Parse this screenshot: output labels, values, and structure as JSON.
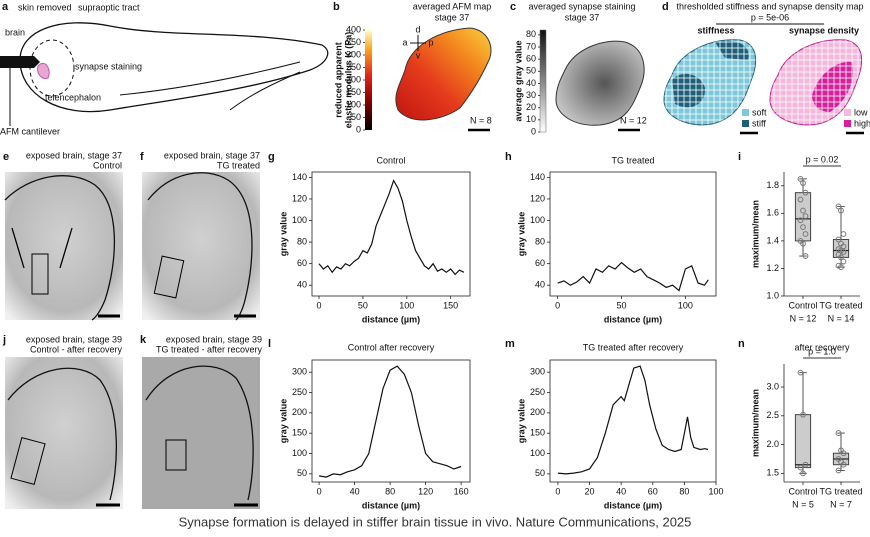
{
  "caption": "Synapse formation is delayed in stiffer brain tissue in vivo. Nature Communications, 2025",
  "panels": {
    "a": {
      "letter": "a",
      "brain": "brain",
      "skin_removed": "skin removed",
      "supraoptic_tract": "supraoptic tract",
      "synapse_staining": "synapse staining",
      "telencephalon": "telencephalon",
      "afm_cantilever": "AFM cantilever"
    },
    "b": {
      "letter": "b",
      "title": "averaged AFM map",
      "subtitle": "stage 37",
      "colorbar_label": [
        "reduced apparent",
        "elastic modulus K (Pa)"
      ],
      "colorbar_lim": [
        0,
        400
      ],
      "colorbar_ticks": [
        0,
        50,
        100,
        150,
        200,
        250,
        300,
        350,
        400
      ],
      "directions": [
        "d",
        "a",
        "p",
        "v"
      ],
      "n": "N = 8"
    },
    "c": {
      "letter": "c",
      "title": "averaged synapse staining",
      "subtitle": "stage 37",
      "colorbar_label": "average gray value",
      "colorbar_lim": [
        0,
        84
      ],
      "colorbar_ticks": [
        0,
        10,
        20,
        30,
        40,
        50,
        60,
        70,
        80
      ],
      "n": "N = 12"
    },
    "d": {
      "letter": "d",
      "title": "thresholded stiffness and synapse density map",
      "p_value": "p = 5e-06",
      "stiffness": "stiffness",
      "synapse_density": "synapse density",
      "legend_left": [
        "soft",
        "stiff"
      ],
      "legend_right": [
        "low",
        "high"
      ]
    },
    "e": {
      "letter": "e",
      "title": "exposed brain, stage 37",
      "condition": "Control"
    },
    "f": {
      "letter": "f",
      "title": "exposed brain, stage 37",
      "condition": "TG treated"
    },
    "j": {
      "letter": "j",
      "title": "exposed brain, stage 39",
      "condition": "Control - after recovery"
    },
    "k": {
      "letter": "k",
      "title": "exposed brain, stage 39",
      "condition": "TG treated - after recovery"
    }
  },
  "chart_data": [
    {
      "type": "line",
      "letter": "g",
      "title": "Control",
      "xlabel": "distance (µm)",
      "ylabel": "gray value",
      "color": "#111111",
      "x": [
        0,
        5,
        10,
        15,
        20,
        25,
        30,
        35,
        40,
        45,
        50,
        55,
        60,
        65,
        70,
        75,
        80,
        85,
        90,
        95,
        100,
        105,
        110,
        115,
        120,
        125,
        130,
        135,
        140,
        145,
        150,
        155,
        160,
        165
      ],
      "values": [
        60,
        55,
        58,
        52,
        57,
        55,
        60,
        58,
        62,
        65,
        72,
        70,
        78,
        95,
        105,
        115,
        125,
        137,
        130,
        118,
        100,
        85,
        72,
        65,
        58,
        55,
        60,
        53,
        55,
        52,
        55,
        50,
        54,
        52
      ],
      "xlim": [
        -8,
        172
      ],
      "ylim": [
        30,
        145
      ],
      "xticks": [
        0,
        50,
        100,
        150
      ],
      "yticks": [
        40,
        60,
        80,
        100,
        120,
        140
      ]
    },
    {
      "type": "line",
      "letter": "h",
      "title": "TG treated",
      "xlabel": "distance (µm)",
      "ylabel": "gray value",
      "color": "#111111",
      "x": [
        0,
        5,
        10,
        15,
        20,
        25,
        30,
        35,
        40,
        45,
        50,
        55,
        60,
        65,
        70,
        75,
        80,
        85,
        90,
        95,
        100,
        105,
        110,
        115,
        118
      ],
      "values": [
        42,
        44,
        40,
        43,
        48,
        42,
        55,
        52,
        58,
        55,
        61,
        56,
        52,
        55,
        48,
        45,
        42,
        38,
        40,
        35,
        55,
        58,
        42,
        40,
        45
      ],
      "xlim": [
        -6,
        124
      ],
      "ylim": [
        30,
        145
      ],
      "xticks": [
        0,
        50,
        100
      ],
      "yticks": [
        40,
        60,
        80,
        100,
        120,
        140
      ]
    },
    {
      "type": "box",
      "letter": "i",
      "annotation": "p = 0.02",
      "ylabel": "maximum/mean",
      "color": "#cccccc",
      "categories": [
        "Control",
        "TG treated"
      ],
      "sample_sizes": [
        "N = 12",
        "N = 14"
      ],
      "boxes": [
        {
          "whislo": 1.29,
          "q1": 1.4,
          "med": 1.56,
          "q3": 1.75,
          "whishi": 1.85,
          "points": [
            1.85,
            1.82,
            1.75,
            1.7,
            1.62,
            1.58,
            1.55,
            1.5,
            1.45,
            1.4,
            1.38,
            1.29
          ]
        },
        {
          "whislo": 1.21,
          "q1": 1.28,
          "med": 1.33,
          "q3": 1.41,
          "whishi": 1.65,
          "points": [
            1.65,
            1.62,
            1.45,
            1.41,
            1.38,
            1.36,
            1.34,
            1.33,
            1.32,
            1.3,
            1.28,
            1.25,
            1.22,
            1.21
          ]
        }
      ],
      "ylim": [
        1.0,
        1.9
      ],
      "yticks": [
        {
          "value": 1.0,
          "label": "1.0"
        },
        1.2,
        1.4,
        1.6,
        1.8
      ]
    },
    {
      "type": "line",
      "letter": "l",
      "title": "Control after recovery",
      "xlabel": "distance (µm)",
      "ylabel": "gray value",
      "color": "#111111",
      "x": [
        0,
        8,
        16,
        24,
        32,
        40,
        48,
        56,
        64,
        72,
        80,
        88,
        96,
        104,
        112,
        120,
        128,
        136,
        144,
        152,
        160
      ],
      "values": [
        45,
        42,
        50,
        48,
        55,
        60,
        70,
        100,
        180,
        260,
        305,
        315,
        295,
        250,
        170,
        100,
        80,
        75,
        70,
        62,
        68
      ],
      "xlim": [
        -8,
        170
      ],
      "ylim": [
        30,
        330
      ],
      "xticks": [
        0,
        40,
        80,
        120,
        160
      ],
      "yticks": [
        50,
        100,
        150,
        200,
        250,
        300
      ]
    },
    {
      "type": "line",
      "letter": "m",
      "title": "TG treated after recovery",
      "xlabel": "distance (µm)",
      "ylabel": "gray value",
      "color": "#111111",
      "x": [
        0,
        5,
        10,
        15,
        20,
        25,
        30,
        35,
        40,
        42,
        45,
        48,
        52,
        55,
        58,
        62,
        66,
        70,
        74,
        78,
        80,
        82,
        84,
        86,
        90,
        93,
        95
      ],
      "values": [
        52,
        50,
        52,
        55,
        62,
        90,
        150,
        220,
        240,
        230,
        270,
        310,
        315,
        280,
        220,
        160,
        120,
        110,
        105,
        110,
        150,
        190,
        140,
        115,
        110,
        112,
        110
      ],
      "xlim": [
        -5,
        100
      ],
      "ylim": [
        30,
        330
      ],
      "xticks": [
        0,
        20,
        40,
        60,
        80,
        100
      ],
      "yticks": [
        50,
        100,
        150,
        200,
        250,
        300
      ]
    },
    {
      "type": "box",
      "letter": "n",
      "title": "after recovery",
      "annotation": "p = 1.0",
      "ylabel": "maximum/mean",
      "color": "#cccccc",
      "categories": [
        "Control",
        "TG treated"
      ],
      "sample_sizes": [
        "N = 5",
        "N = 7"
      ],
      "boxes": [
        {
          "whislo": 1.5,
          "q1": 1.6,
          "med": 1.65,
          "q3": 2.52,
          "whishi": 3.25,
          "points": [
            3.25,
            2.52,
            1.65,
            1.6,
            1.5
          ]
        },
        {
          "whislo": 1.55,
          "q1": 1.65,
          "med": 1.75,
          "q3": 1.85,
          "whishi": 2.2,
          "points": [
            2.2,
            1.9,
            1.85,
            1.75,
            1.7,
            1.65,
            1.55
          ]
        }
      ],
      "ylim": [
        1.35,
        3.4
      ],
      "yticks": [
        1.5,
        {
          "value": 2.0,
          "label": "2.0"
        },
        2.5,
        {
          "value": 3.0,
          "label": "3.0"
        }
      ]
    }
  ]
}
